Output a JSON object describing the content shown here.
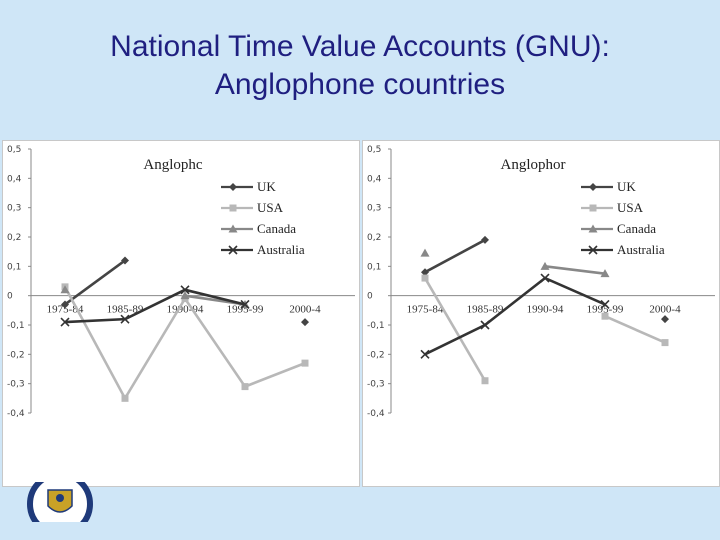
{
  "slide": {
    "title_line1": "National Time Value Accounts (GNU):",
    "title_line2": "Anglophone countries"
  },
  "chart_data": [
    {
      "type": "line",
      "title": "Anglophc",
      "categories": [
        "1975-84",
        "1985-89",
        "1990-94",
        "1995-99",
        "2000-4"
      ],
      "y_ticks": [
        "0,5",
        "0,4",
        "0,3",
        "0,2",
        "0,1",
        "0",
        "-0,1",
        "-0,2",
        "-0,3",
        "-0,4"
      ],
      "ylim": [
        -0.4,
        0.5
      ],
      "grid": false,
      "legend_position": "right",
      "series": [
        {
          "name": "UK",
          "marker": "diamond",
          "color": "#444444",
          "values": [
            -0.03,
            0.12,
            null,
            null,
            -0.09
          ]
        },
        {
          "name": "USA",
          "marker": "square",
          "color": "#b8b8b8",
          "values": [
            0.03,
            -0.35,
            -0.01,
            -0.31,
            -0.23
          ]
        },
        {
          "name": "Canada",
          "marker": "triangle",
          "color": "#888888",
          "values": [
            0.02,
            null,
            0.0,
            -0.03,
            null
          ]
        },
        {
          "name": "Australia",
          "marker": "x",
          "color": "#333333",
          "values": [
            -0.09,
            -0.08,
            0.02,
            -0.03,
            null
          ]
        }
      ]
    },
    {
      "type": "line",
      "title": "Anglophor",
      "categories": [
        "1975-84",
        "1985-89",
        "1990-94",
        "1995-99",
        "2000-4"
      ],
      "y_ticks": [
        "0,5",
        "0,4",
        "0,3",
        "0,2",
        "0,1",
        "0",
        "-0,1",
        "-0,2",
        "-0,3",
        "-0,4"
      ],
      "ylim": [
        -0.4,
        0.5
      ],
      "grid": false,
      "legend_position": "right",
      "series": [
        {
          "name": "UK",
          "marker": "diamond",
          "color": "#444444",
          "values": [
            0.08,
            0.19,
            null,
            null,
            -0.08
          ]
        },
        {
          "name": "USA",
          "marker": "square",
          "color": "#b8b8b8",
          "values": [
            0.06,
            -0.29,
            null,
            -0.07,
            -0.16
          ]
        },
        {
          "name": "Canada",
          "marker": "triangle",
          "color": "#888888",
          "values": [
            0.145,
            null,
            0.1,
            0.075,
            null
          ]
        },
        {
          "name": "Australia",
          "marker": "x",
          "color": "#333333",
          "values": [
            -0.2,
            -0.1,
            0.06,
            -0.03,
            null
          ]
        }
      ]
    }
  ]
}
